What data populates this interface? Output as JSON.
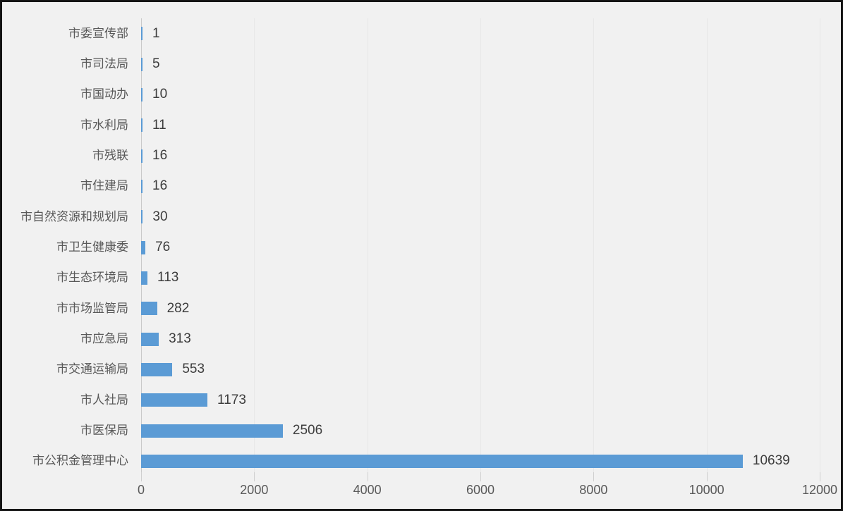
{
  "chart_data": {
    "type": "bar",
    "orientation": "horizontal",
    "categories": [
      "市委宣传部",
      "市司法局",
      "市国动办",
      "市水利局",
      "市残联",
      "市住建局",
      "市自然资源和规划局",
      "市卫生健康委",
      "市生态环境局",
      "市市场监管局",
      "市应急局",
      "市交通运输局",
      "市人社局",
      "市医保局",
      "市公积金管理中心"
    ],
    "values": [
      1,
      5,
      10,
      11,
      16,
      16,
      30,
      76,
      113,
      282,
      313,
      553,
      1173,
      2506,
      10639
    ],
    "data_labels": [
      "1",
      "5",
      "10",
      "11",
      "16",
      "16",
      "30",
      "76",
      "113",
      "282",
      "313",
      "553",
      "1173",
      "2506",
      "10639"
    ],
    "title": "",
    "xlabel": "",
    "ylabel": "",
    "xlim": [
      0,
      12000
    ],
    "x_ticks": [
      0,
      2000,
      4000,
      6000,
      8000,
      10000,
      12000
    ],
    "x_tick_labels": [
      "0",
      "2000",
      "4000",
      "6000",
      "8000",
      "10000",
      "12000"
    ],
    "grid": true,
    "legend": false,
    "colors": {
      "bar": "#5b9bd5",
      "background": "#f1f1f1",
      "gridline": "#e7e7e7",
      "axis_line": "#c9c9c9",
      "tick_mark": "#cfcfcf",
      "category_text": "#595959",
      "value_text": "#3d3d3d",
      "tick_text": "#595959",
      "frame_border": "#141414"
    }
  }
}
